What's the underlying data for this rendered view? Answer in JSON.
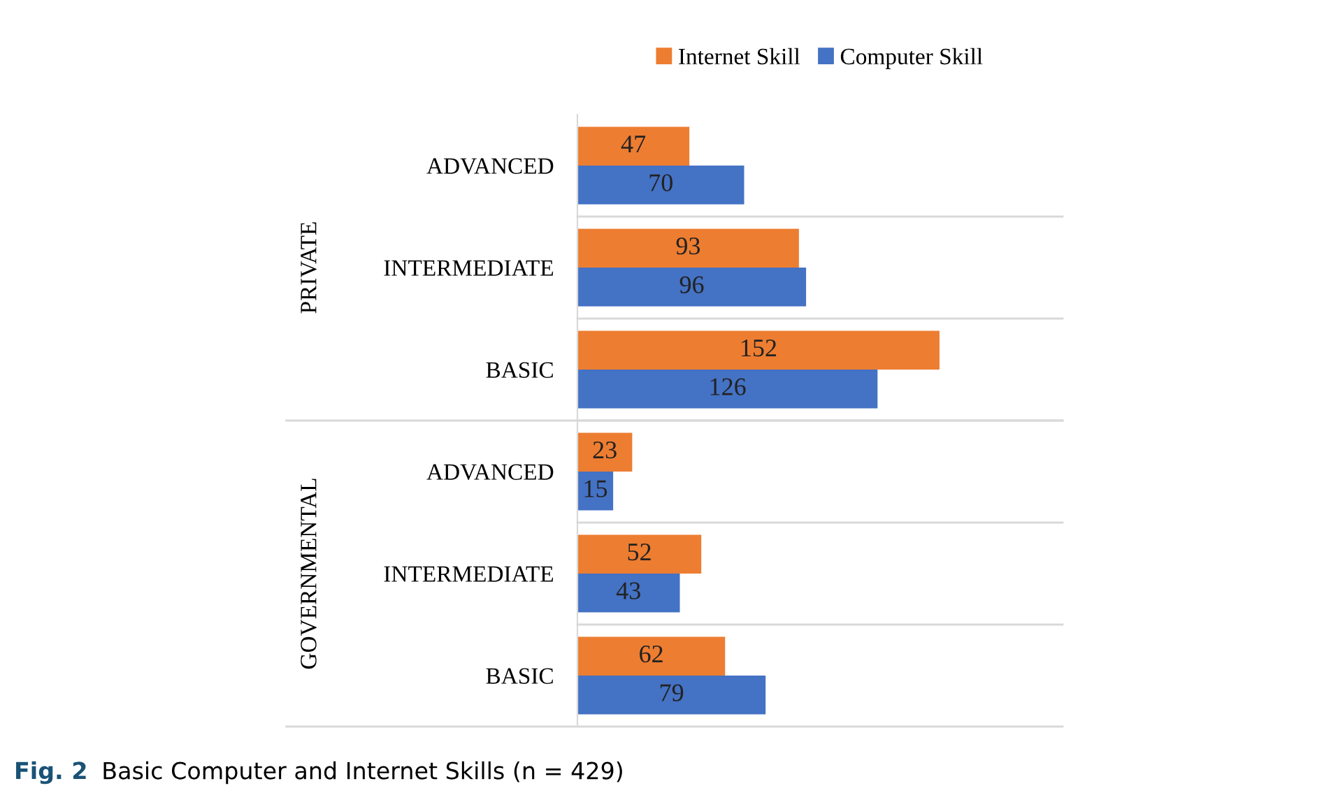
{
  "chart_data": {
    "type": "bar",
    "orientation": "horizontal",
    "categories": [
      "ADVANCED",
      "INTERMEDIATE",
      "BASIC",
      "ADVANCED",
      "INTERMEDIATE",
      "BASIC"
    ],
    "series": [
      {
        "name": "Internet Skill",
        "color": "#ed7d31",
        "values": [
          47,
          93,
          152,
          23,
          52,
          62
        ]
      },
      {
        "name": "Computer Skill",
        "color": "#4472c4",
        "values": [
          70,
          96,
          126,
          15,
          43,
          79
        ]
      }
    ],
    "data_labels": true,
    "legend": "top",
    "grid": false,
    "annotations": [
      "PRIVATE",
      "GOVERNMENTAL",
      "Fig. 2",
      "Basic Computer and Internet Skills (n = 429)"
    ]
  }
}
